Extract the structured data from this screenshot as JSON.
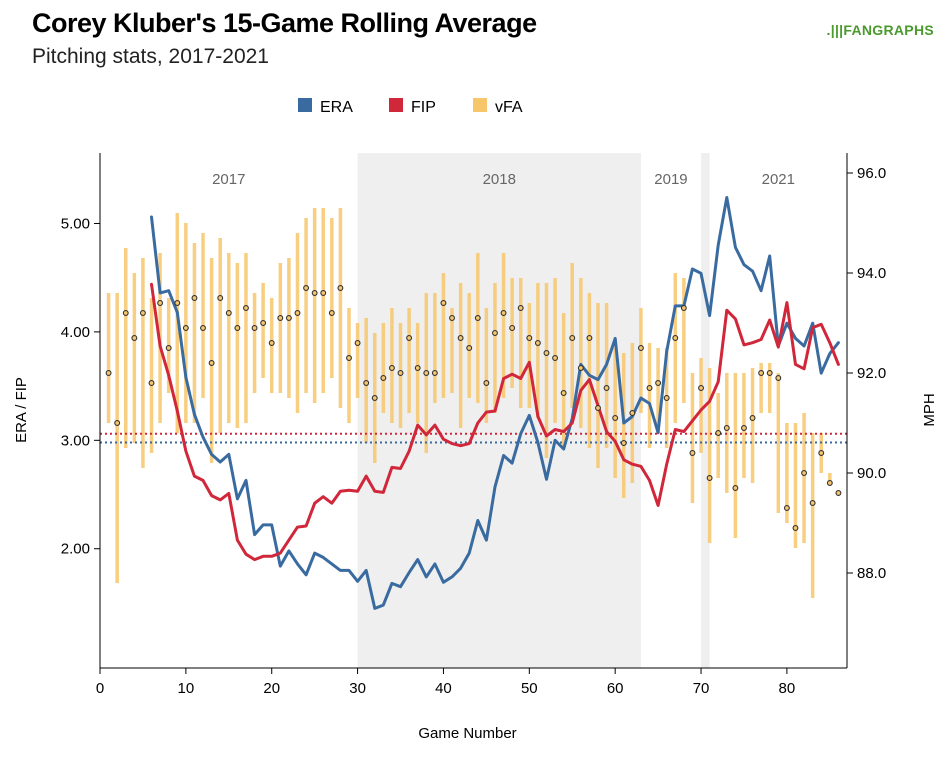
{
  "header": {
    "title": "Corey Kluber's 15-Game Rolling Average",
    "subtitle": "Pitching stats, 2017-2021",
    "logo": "FANGRAPHS"
  },
  "chart_data": {
    "type": "line",
    "title": "Corey Kluber's 15-Game Rolling Average",
    "subtitle": "Pitching stats, 2017-2021",
    "xlabel": "Game Number",
    "ylabel_left": "ERA / FIP",
    "ylabel_right": "MPH",
    "xlim": [
      0,
      87
    ],
    "ylim_left": [
      0.9,
      5.65
    ],
    "ylim_right": [
      86.1,
      96.4
    ],
    "xticks": [
      0,
      10,
      20,
      30,
      40,
      50,
      60,
      70,
      80
    ],
    "xtick_labels": [
      "0",
      "10",
      "20",
      "30",
      "40",
      "50",
      "60",
      "70",
      "80"
    ],
    "yticks_left": [
      2,
      3,
      4,
      5
    ],
    "ytick_labels_left": [
      "2.00",
      "3.00",
      "4.00",
      "5.00"
    ],
    "yticks_right": [
      88,
      90,
      92,
      94,
      96
    ],
    "ytick_labels_right": [
      "88.0",
      "90.0",
      "92.0",
      "94.0",
      "96.0"
    ],
    "legend": {
      "position": "top",
      "entries": [
        {
          "label": "ERA",
          "color": "#3a6ba0"
        },
        {
          "label": "FIP",
          "color": "#d0273a"
        },
        {
          "label": "vFA",
          "color": "#f7c66b"
        }
      ]
    },
    "seasons": [
      {
        "label": "2017",
        "start": 0,
        "end": 30,
        "shaded": false
      },
      {
        "label": "2018",
        "start": 30,
        "end": 63,
        "shaded": true
      },
      {
        "label": "2019",
        "start": 63,
        "end": 70,
        "shaded": false
      },
      {
        "label": "",
        "start": 70,
        "end": 71,
        "shaded": true
      },
      {
        "label": "2021",
        "start": 71,
        "end": 87,
        "shaded": false
      }
    ],
    "reference_lines": [
      {
        "name": "FIP average",
        "value": 3.06,
        "color": "#d0273a"
      },
      {
        "name": "ERA average",
        "value": 2.98,
        "color": "#3a6ba0"
      }
    ],
    "series": [
      {
        "name": "ERA",
        "axis": "left",
        "color": "#3a6ba0",
        "x": [
          6,
          7,
          8,
          9,
          10,
          11,
          12,
          13,
          14,
          15,
          16,
          17,
          18,
          19,
          20,
          21,
          22,
          23,
          24,
          25,
          26,
          27,
          28,
          29,
          30,
          31,
          32,
          33,
          34,
          35,
          36,
          37,
          38,
          39,
          40,
          41,
          42,
          43,
          44,
          45,
          46,
          47,
          48,
          49,
          50,
          51,
          52,
          53,
          54,
          55,
          56,
          57,
          58,
          59,
          60,
          61,
          62,
          63,
          64,
          65,
          66,
          67,
          68,
          69,
          70,
          71,
          72,
          73,
          74,
          75,
          76,
          77,
          78,
          79,
          80,
          81,
          82,
          83,
          84,
          85,
          86
        ],
        "values": [
          5.06,
          4.36,
          4.38,
          4.18,
          3.58,
          3.24,
          3.03,
          2.87,
          2.8,
          2.87,
          2.46,
          2.63,
          2.13,
          2.22,
          2.22,
          1.84,
          1.98,
          1.86,
          1.76,
          1.96,
          1.92,
          1.86,
          1.8,
          1.8,
          1.7,
          1.8,
          1.45,
          1.48,
          1.68,
          1.65,
          1.78,
          1.9,
          1.74,
          1.86,
          1.69,
          1.74,
          1.82,
          1.96,
          2.26,
          2.08,
          2.57,
          2.86,
          2.79,
          3.06,
          3.23,
          2.98,
          2.64,
          3.0,
          2.92,
          3.2,
          3.7,
          3.6,
          3.56,
          3.7,
          3.94,
          3.16,
          3.22,
          3.39,
          3.34,
          3.07,
          3.82,
          4.24,
          4.24,
          4.58,
          4.54,
          4.15,
          4.8,
          5.24,
          4.78,
          4.62,
          4.56,
          4.38,
          4.7,
          3.87,
          4.08,
          3.94,
          3.87,
          4.08,
          3.62,
          3.8,
          3.9
        ]
      },
      {
        "name": "FIP",
        "axis": "left",
        "color": "#d0273a",
        "x": [
          6,
          7,
          8,
          9,
          10,
          11,
          12,
          13,
          14,
          15,
          16,
          17,
          18,
          19,
          20,
          21,
          22,
          23,
          24,
          25,
          26,
          27,
          28,
          29,
          30,
          31,
          32,
          33,
          34,
          35,
          36,
          37,
          38,
          39,
          40,
          41,
          42,
          43,
          44,
          45,
          46,
          47,
          48,
          49,
          50,
          51,
          52,
          53,
          54,
          55,
          56,
          57,
          58,
          59,
          60,
          61,
          62,
          63,
          64,
          65,
          66,
          67,
          68,
          69,
          70,
          71,
          72,
          73,
          74,
          75,
          76,
          77,
          78,
          79,
          80,
          81,
          82,
          83,
          84,
          85,
          86
        ],
        "values": [
          4.44,
          3.87,
          3.6,
          3.27,
          2.9,
          2.67,
          2.63,
          2.49,
          2.45,
          2.51,
          2.08,
          1.95,
          1.9,
          1.93,
          1.93,
          1.96,
          2.08,
          2.2,
          2.21,
          2.42,
          2.48,
          2.42,
          2.53,
          2.54,
          2.53,
          2.67,
          2.53,
          2.52,
          2.75,
          2.74,
          2.9,
          3.14,
          3.05,
          3.14,
          3.01,
          2.97,
          2.95,
          2.97,
          3.16,
          3.26,
          3.27,
          3.57,
          3.61,
          3.57,
          3.72,
          3.22,
          3.04,
          3.1,
          3.08,
          3.16,
          3.46,
          3.56,
          3.32,
          3.08,
          2.99,
          2.82,
          2.78,
          2.76,
          2.63,
          2.4,
          2.78,
          3.1,
          3.08,
          3.18,
          3.28,
          3.36,
          3.54,
          4.2,
          4.12,
          3.88,
          3.9,
          3.93,
          4.11,
          3.86,
          4.27,
          3.7,
          3.66,
          4.04,
          4.07,
          3.9,
          3.7
        ]
      },
      {
        "name": "vFA",
        "axis": "right",
        "color": "#f7c66b",
        "x": [
          1,
          2,
          3,
          4,
          5,
          6,
          7,
          8,
          9,
          10,
          11,
          12,
          13,
          14,
          15,
          16,
          17,
          18,
          19,
          20,
          21,
          22,
          23,
          24,
          25,
          26,
          27,
          28,
          29,
          30,
          31,
          32,
          33,
          34,
          35,
          36,
          37,
          38,
          39,
          40,
          41,
          42,
          43,
          44,
          45,
          46,
          47,
          48,
          49,
          50,
          51,
          52,
          53,
          54,
          55,
          56,
          57,
          58,
          59,
          60,
          61,
          62,
          63,
          64,
          65,
          66,
          67,
          68,
          69,
          70,
          71,
          72,
          73,
          74,
          75,
          76,
          77,
          78,
          79,
          80,
          81,
          82,
          83,
          84,
          85,
          86
        ],
        "values": [
          92.0,
          91.0,
          93.2,
          92.7,
          93.2,
          91.8,
          93.4,
          92.5,
          93.4,
          92.9,
          93.5,
          92.9,
          92.2,
          93.5,
          93.2,
          92.9,
          93.3,
          92.9,
          93.0,
          92.6,
          93.1,
          93.1,
          93.2,
          93.7,
          93.6,
          93.6,
          93.2,
          93.7,
          92.3,
          92.6,
          91.8,
          91.5,
          91.9,
          92.1,
          92.0,
          92.7,
          92.1,
          92.0,
          92.0,
          93.4,
          93.1,
          92.7,
          92.5,
          93.1,
          91.8,
          92.8,
          93.2,
          92.9,
          93.3,
          92.7,
          92.6,
          92.4,
          92.3,
          91.6,
          92.7,
          92.1,
          92.7,
          91.3,
          91.7,
          91.1,
          90.6,
          91.2,
          92.5,
          91.7,
          91.8,
          91.5,
          92.7,
          93.3,
          90.4,
          91.7,
          89.9,
          90.8,
          90.9,
          89.7,
          90.9,
          91.1,
          92.0,
          92.0,
          91.9,
          89.3,
          88.9,
          90.0,
          89.4,
          90.4,
          89.8,
          89.6
        ],
        "ranges": [
          [
            91,
            93.6
          ],
          [
            87.8,
            93.6
          ],
          [
            90.5,
            94.5
          ],
          [
            90.6,
            94.0
          ],
          [
            90.1,
            94.3
          ],
          [
            90.4,
            93.5
          ],
          [
            91.0,
            94.4
          ],
          [
            91.6,
            93.5
          ],
          [
            90.8,
            95.2
          ],
          [
            91.0,
            95.0
          ],
          [
            91.0,
            94.6
          ],
          [
            91.5,
            94.8
          ],
          [
            90.2,
            94.3
          ],
          [
            90.8,
            94.7
          ],
          [
            91.0,
            94.4
          ],
          [
            90.9,
            94.2
          ],
          [
            91.0,
            94.4
          ],
          [
            91.6,
            93.6
          ],
          [
            91.9,
            93.8
          ],
          [
            91.6,
            93.5
          ],
          [
            91.6,
            94.2
          ],
          [
            91.5,
            94.3
          ],
          [
            91.2,
            94.8
          ],
          [
            91.6,
            95.1
          ],
          [
            91.4,
            95.3
          ],
          [
            91.6,
            95.3
          ],
          [
            91.9,
            95.1
          ],
          [
            91.3,
            95.3
          ],
          [
            91.0,
            93.3
          ],
          [
            91.5,
            93.0
          ],
          [
            90.6,
            93.1
          ],
          [
            90.2,
            92.8
          ],
          [
            91.2,
            93.0
          ],
          [
            91.0,
            93.3
          ],
          [
            90.9,
            93.0
          ],
          [
            91.2,
            93.3
          ],
          [
            91.0,
            93.0
          ],
          [
            90.4,
            93.6
          ],
          [
            91.4,
            93.6
          ],
          [
            91.5,
            94.0
          ],
          [
            91.6,
            93.3
          ],
          [
            90.9,
            93.8
          ],
          [
            91.5,
            93.6
          ],
          [
            91.4,
            94.4
          ],
          [
            91.0,
            93.3
          ],
          [
            91.2,
            93.8
          ],
          [
            91.5,
            94.4
          ],
          [
            91.7,
            93.9
          ],
          [
            91.3,
            93.9
          ],
          [
            91.3,
            93.4
          ],
          [
            91.1,
            93.8
          ],
          [
            90.3,
            93.8
          ],
          [
            91.0,
            93.9
          ],
          [
            90.5,
            93.2
          ],
          [
            91.3,
            94.2
          ],
          [
            90.9,
            93.9
          ],
          [
            90.5,
            93.6
          ],
          [
            90.1,
            93.4
          ],
          [
            90.5,
            93.4
          ],
          [
            89.9,
            92.5
          ],
          [
            89.5,
            92.4
          ],
          [
            89.8,
            92.6
          ],
          [
            91.2,
            93.3
          ],
          [
            90.5,
            92.6
          ],
          [
            90.8,
            92.5
          ],
          [
            90.5,
            92.5
          ],
          [
            91.0,
            94.0
          ],
          [
            91.4,
            93.9
          ],
          [
            89.4,
            92.0
          ],
          [
            90.4,
            92.3
          ],
          [
            88.6,
            92.1
          ],
          [
            89.9,
            91.6
          ],
          [
            89.6,
            92.0
          ],
          [
            88.7,
            92.0
          ],
          [
            89.9,
            92.0
          ],
          [
            89.8,
            92.1
          ],
          [
            91.2,
            92.2
          ],
          [
            91.2,
            92.2
          ],
          [
            89.2,
            92.0
          ],
          [
            89.0,
            91.0
          ],
          [
            88.5,
            91.0
          ],
          [
            88.6,
            91.2
          ],
          [
            87.5,
            90.8
          ],
          [
            90.0,
            90.8
          ],
          [
            89.8,
            90.0
          ],
          [
            89.6,
            89.6
          ]
        ]
      }
    ]
  }
}
